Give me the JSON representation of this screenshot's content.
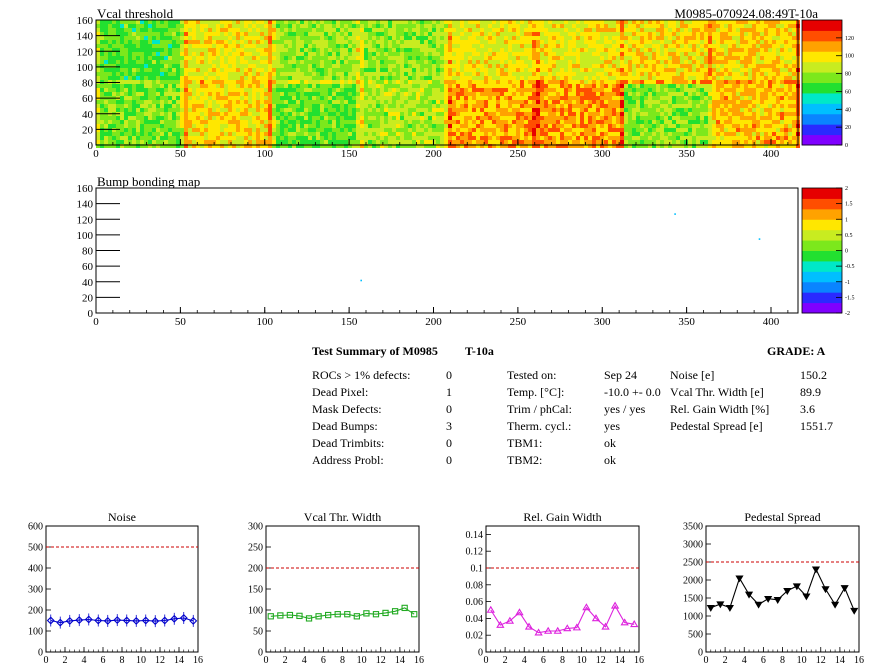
{
  "colors": {
    "palette": [
      "#7f00ff",
      "#2a2aff",
      "#0a84ff",
      "#00bfff",
      "#00e8c8",
      "#22e030",
      "#7ce81c",
      "#c8ec20",
      "#ffe700",
      "#ffa200",
      "#ff4e00",
      "#e60000"
    ],
    "marker_blue": "#0000cc",
    "marker_green": "#22aa22",
    "marker_magenta": "#dd22dd",
    "marker_black": "#000000",
    "limit_line": "#cc0000"
  },
  "maps": {
    "vcal": {
      "title": "Vcal threshold",
      "id_label": "M0985-070924.08:49T-10a",
      "xticks": [
        "0",
        "50",
        "100",
        "150",
        "200",
        "250",
        "300",
        "350",
        "400"
      ],
      "yticks": [
        "0",
        "20",
        "40",
        "60",
        "80",
        "100",
        "120",
        "140",
        "160"
      ],
      "zticks": [
        "0",
        "20",
        "40",
        "60",
        "80",
        "100",
        "120"
      ],
      "zrange": [
        0,
        140
      ],
      "roc_means_top": [
        70,
        95,
        80,
        78,
        95,
        95,
        100,
        102
      ],
      "roc_means_bottom": [
        75,
        100,
        72,
        82,
        108,
        112,
        78,
        105
      ]
    },
    "bump": {
      "title": "Bump bonding map",
      "xticks": [
        "0",
        "50",
        "100",
        "150",
        "200",
        "250",
        "300",
        "350",
        "400"
      ],
      "yticks": [
        "0",
        "20",
        "40",
        "60",
        "80",
        "100",
        "120",
        "140",
        "160"
      ],
      "zticks": [
        "-2",
        "-1.5",
        "-1",
        "-0.5",
        "0",
        "0.5",
        "1",
        "1.5",
        "2"
      ],
      "defects": [
        [
          343,
          127
        ],
        [
          157,
          42
        ],
        [
          393,
          95
        ]
      ]
    }
  },
  "summary": {
    "title": "Test Summary of M0985",
    "temp_label": "T-10a",
    "grade": "GRADE:  A",
    "col1": [
      {
        "label": "ROCs > 1% defects:",
        "value": "0"
      },
      {
        "label": "Dead Pixel:",
        "value": "1"
      },
      {
        "label": "Mask Defects:",
        "value": "0"
      },
      {
        "label": "Dead Bumps:",
        "value": "3"
      },
      {
        "label": "Dead Trimbits:",
        "value": "0"
      },
      {
        "label": "Address Probl:",
        "value": "0"
      }
    ],
    "col2": [
      {
        "label": "Tested on:",
        "value": "Sep 24"
      },
      {
        "label": "Temp. [°C]:",
        "value": "-10.0 +- 0.0"
      },
      {
        "label": "Trim / phCal:",
        "value": "yes / yes"
      },
      {
        "label": "Therm. cycl.:",
        "value": "yes"
      },
      {
        "label": "TBM1:",
        "value": "ok"
      },
      {
        "label": "TBM2:",
        "value": "ok"
      }
    ],
    "col3": [
      {
        "label": "Noise [e]",
        "value": "150.2"
      },
      {
        "label": "Vcal Thr. Width [e]",
        "value": "89.9"
      },
      {
        "label": "Rel. Gain Width [%]",
        "value": "3.6"
      },
      {
        "label": "Pedestal Spread [e]",
        "value": "1551.7"
      }
    ]
  },
  "chart_data": [
    {
      "type": "line",
      "title": "Noise",
      "xlabel": "",
      "ylabel": "",
      "xlim": [
        0,
        16
      ],
      "ylim": [
        0,
        600
      ],
      "limit": 500,
      "xticks": [
        "0",
        "2",
        "4",
        "6",
        "8",
        "10",
        "12",
        "14",
        "16"
      ],
      "yticks": [
        "0",
        "100",
        "200",
        "300",
        "400",
        "500",
        "600"
      ],
      "marker": "diamond",
      "color": "#0000cc",
      "x": [
        0.5,
        1.5,
        2.5,
        3.5,
        4.5,
        5.5,
        6.5,
        7.5,
        8.5,
        9.5,
        10.5,
        11.5,
        12.5,
        13.5,
        14.5,
        15.5
      ],
      "y": [
        150,
        140,
        148,
        152,
        155,
        150,
        148,
        152,
        150,
        148,
        150,
        147,
        150,
        158,
        162,
        148
      ]
    },
    {
      "type": "line",
      "title": "Vcal Thr. Width",
      "xlabel": "",
      "ylabel": "",
      "xlim": [
        0,
        16
      ],
      "ylim": [
        0,
        300
      ],
      "limit": 200,
      "xticks": [
        "0",
        "2",
        "4",
        "6",
        "8",
        "10",
        "12",
        "14",
        "16"
      ],
      "yticks": [
        "0",
        "50",
        "100",
        "150",
        "200",
        "250",
        "300"
      ],
      "marker": "square",
      "color": "#22aa22",
      "x": [
        0.5,
        1.5,
        2.5,
        3.5,
        4.5,
        5.5,
        6.5,
        7.5,
        8.5,
        9.5,
        10.5,
        11.5,
        12.5,
        13.5,
        14.5,
        15.5
      ],
      "y": [
        85,
        87,
        88,
        86,
        80,
        85,
        88,
        90,
        90,
        85,
        92,
        90,
        93,
        97,
        105,
        90
      ]
    },
    {
      "type": "line",
      "title": "Rel. Gain Width",
      "xlabel": "",
      "ylabel": "",
      "xlim": [
        0,
        16
      ],
      "ylim": [
        0,
        0.15
      ],
      "limit": 0.1,
      "xticks": [
        "0",
        "2",
        "4",
        "6",
        "8",
        "10",
        "12",
        "14",
        "16"
      ],
      "yticks": [
        "0",
        "0.02",
        "0.04",
        "0.06",
        "0.08",
        "0.1",
        "0.12",
        "0.14"
      ],
      "marker": "triangle",
      "color": "#dd22dd",
      "x": [
        0.5,
        1.5,
        2.5,
        3.5,
        4.5,
        5.5,
        6.5,
        7.5,
        8.5,
        9.5,
        10.5,
        11.5,
        12.5,
        13.5,
        14.5,
        15.5
      ],
      "y": [
        0.05,
        0.032,
        0.037,
        0.047,
        0.03,
        0.023,
        0.025,
        0.025,
        0.028,
        0.029,
        0.053,
        0.04,
        0.03,
        0.055,
        0.035,
        0.033
      ]
    },
    {
      "type": "line",
      "title": "Pedestal Spread",
      "xlabel": "",
      "ylabel": "",
      "xlim": [
        0,
        16
      ],
      "ylim": [
        0,
        3500
      ],
      "limit": 2500,
      "xticks": [
        "0",
        "2",
        "4",
        "6",
        "8",
        "10",
        "12",
        "14",
        "16"
      ],
      "yticks": [
        "0",
        "500",
        "1000",
        "1500",
        "2000",
        "2500",
        "3000",
        "3500"
      ],
      "marker": "triangle-down",
      "color": "#000000",
      "x": [
        0.5,
        1.5,
        2.5,
        3.5,
        4.5,
        5.5,
        6.5,
        7.5,
        8.5,
        9.5,
        10.5,
        11.5,
        12.5,
        13.5,
        14.5,
        15.5
      ],
      "y": [
        1230,
        1330,
        1230,
        2050,
        1600,
        1320,
        1480,
        1450,
        1700,
        1830,
        1550,
        2300,
        1750,
        1320,
        1780,
        1150
      ]
    }
  ]
}
